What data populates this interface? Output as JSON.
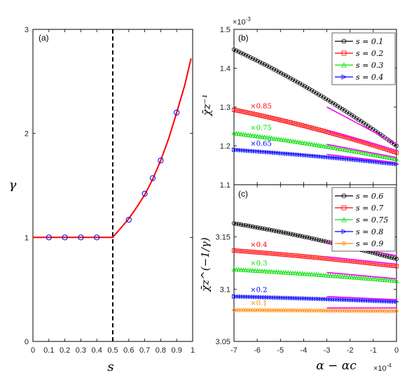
{
  "chart_data": [
    {
      "panel": "(a)",
      "type": "line",
      "xlabel": "s",
      "ylabel": "γ",
      "xlim": [
        0,
        1
      ],
      "ylim": [
        0,
        3
      ],
      "xticks": [
        "0",
        "0.1",
        "0.2",
        "0.3",
        "0.4",
        "0.5",
        "0.6",
        "0.7",
        "0.8",
        "0.9",
        "1"
      ],
      "yticks": [
        "0",
        "1",
        "2",
        "3"
      ],
      "curve": {
        "x": [
          0.0,
          0.5,
          0.55,
          0.6,
          0.65,
          0.7,
          0.75,
          0.8,
          0.85,
          0.9,
          0.95,
          0.99
        ],
        "y": [
          1.0,
          1.0,
          1.09,
          1.18,
          1.29,
          1.41,
          1.56,
          1.74,
          1.95,
          2.2,
          2.46,
          2.72
        ]
      },
      "markers": {
        "x": [
          0.1,
          0.2,
          0.3,
          0.4,
          0.6,
          0.7,
          0.75,
          0.8,
          0.9
        ],
        "y": [
          1.0,
          1.0,
          1.0,
          1.0,
          1.17,
          1.42,
          1.57,
          1.74,
          2.2
        ]
      },
      "vline_x": 0.5
    },
    {
      "panel": "(b)",
      "type": "line",
      "ylabel": "χ̄z⁻¹",
      "xlim": [
        -7,
        0
      ],
      "ylim": [
        1.1,
        1.5
      ],
      "yticks": [
        "1.1",
        "1.2",
        "1.3",
        "1.4",
        "1.5"
      ],
      "y_exponent": "×10",
      "y_exponent_power": "-3",
      "series": [
        {
          "name": "s = 0.1",
          "color": "#000000",
          "marker": "circle",
          "multiplier": "",
          "start": 1.448,
          "end": 1.2
        },
        {
          "name": "s = 0.2",
          "color": "#ff0000",
          "marker": "square",
          "multiplier": "×0.85",
          "start": 1.293,
          "end": 1.183
        },
        {
          "name": "s = 0.3",
          "color": "#00e000",
          "marker": "triangle-up",
          "multiplier": "×0.75",
          "start": 1.233,
          "end": 1.166
        },
        {
          "name": "s = 0.4",
          "color": "#0000ff",
          "marker": "triangle-right",
          "multiplier": "×0.65",
          "start": 1.19,
          "end": 1.153
        }
      ],
      "fits": [
        {
          "x": [
            -3,
            0
          ],
          "y": [
            1.3,
            1.205
          ]
        },
        {
          "x": [
            -3,
            0
          ],
          "y": [
            1.24,
            1.188
          ]
        },
        {
          "x": [
            -3,
            0
          ],
          "y": [
            1.204,
            1.17
          ]
        },
        {
          "x": [
            -3,
            0
          ],
          "y": [
            1.178,
            1.157
          ]
        }
      ]
    },
    {
      "panel": "(c)",
      "type": "line",
      "xlabel": "α − αc",
      "ylabel": "χ̄z^(−1/γ)",
      "xlim": [
        -7,
        0
      ],
      "ylim": [
        3.05,
        3.2
      ],
      "xticks": [
        "-7",
        "-6",
        "-5",
        "-4",
        "-3",
        "-2",
        "-1",
        "0"
      ],
      "yticks": [
        "3.05",
        "3.1",
        "3.15"
      ],
      "x_exponent": "×10",
      "x_exponent_power": "-4",
      "series": [
        {
          "name": "s = 0.6",
          "color": "#000000",
          "marker": "circle",
          "multiplier": "",
          "start": 3.163,
          "end": 3.129
        },
        {
          "name": "s = 0.7",
          "color": "#ff0000",
          "marker": "square",
          "multiplier": "×0.4",
          "start": 3.137,
          "end": 3.122
        },
        {
          "name": "s = 0.75",
          "color": "#00e000",
          "marker": "triangle-up",
          "multiplier": "×0.3",
          "start": 3.119,
          "end": 3.108
        },
        {
          "name": "s = 0.8",
          "color": "#0000ff",
          "marker": "triangle-right",
          "multiplier": "×0.2",
          "start": 3.093,
          "end": 3.088
        },
        {
          "name": "s = 0.9",
          "color": "#ff8800",
          "marker": "diamond",
          "multiplier": "×0.1",
          "start": 3.08,
          "end": 3.079
        }
      ],
      "fits": [
        {
          "x": [
            -3,
            0
          ],
          "y": [
            3.145,
            3.132
          ]
        },
        {
          "x": [
            -3,
            0
          ],
          "y": [
            3.131,
            3.124
          ]
        },
        {
          "x": [
            -3,
            0
          ],
          "y": [
            3.116,
            3.11
          ]
        },
        {
          "x": [
            -3,
            0
          ],
          "y": [
            3.093,
            3.09
          ]
        },
        {
          "x": [
            -3,
            0
          ],
          "y": [
            3.082,
            3.082
          ]
        }
      ]
    }
  ],
  "colors": {
    "fit_line": "#ff00ff",
    "curve_a": "#ff0000",
    "marker_a": "#0000ff"
  }
}
